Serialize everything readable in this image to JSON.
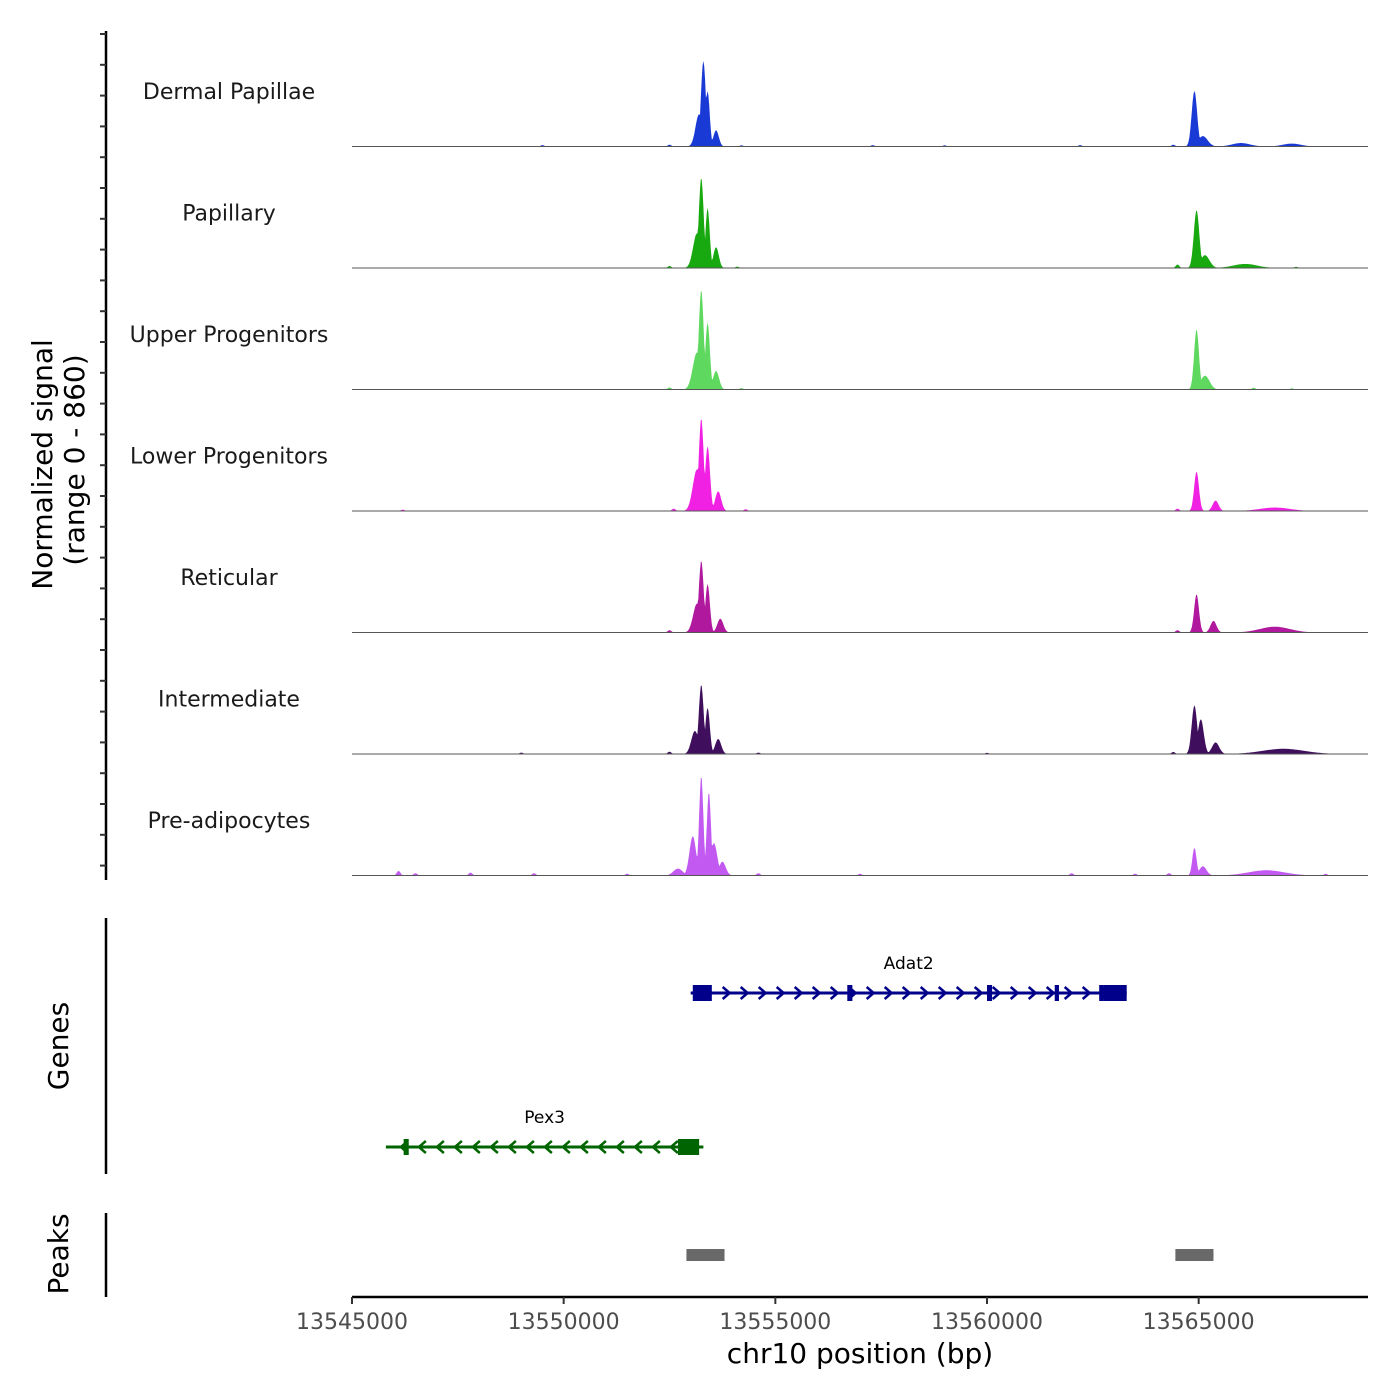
{
  "chart_data": {
    "type": "genome-coverage-track",
    "y_title_line1": "Normalized signal",
    "y_title_line2": "(range 0 - 860)",
    "y_range": [
      0,
      860
    ],
    "x_title": "chr10 position (bp)",
    "x_range": [
      13545000,
      13569000
    ],
    "x_ticks": [
      13545000,
      13550000,
      13555000,
      13560000,
      13565000
    ],
    "x_tick_labels": [
      "13545000",
      "13550000",
      "13555000",
      "13560000",
      "13565000"
    ],
    "tracks": [
      {
        "name": "Dermal Papillae",
        "color": "#1a3ad6",
        "peaks": [
          {
            "pos": 13553300,
            "height": 740,
            "width": 80
          },
          {
            "pos": 13553400,
            "height": 480,
            "width": 70
          },
          {
            "pos": 13553200,
            "height": 280,
            "width": 120
          },
          {
            "pos": 13553600,
            "height": 140,
            "width": 90
          },
          {
            "pos": 13564900,
            "height": 480,
            "width": 90
          },
          {
            "pos": 13565100,
            "height": 90,
            "width": 160
          },
          {
            "pos": 13566000,
            "height": 30,
            "width": 300
          },
          {
            "pos": 13567200,
            "height": 25,
            "width": 300
          }
        ],
        "noise": [
          {
            "pos": 13549500,
            "height": 12
          },
          {
            "pos": 13552500,
            "height": 15
          },
          {
            "pos": 13554200,
            "height": 10
          },
          {
            "pos": 13557300,
            "height": 12
          },
          {
            "pos": 13559000,
            "height": 10
          },
          {
            "pos": 13562200,
            "height": 12
          },
          {
            "pos": 13564400,
            "height": 15
          }
        ]
      },
      {
        "name": "Papillary",
        "color": "#18a80f",
        "peaks": [
          {
            "pos": 13553250,
            "height": 780,
            "width": 80
          },
          {
            "pos": 13553400,
            "height": 520,
            "width": 70
          },
          {
            "pos": 13553150,
            "height": 300,
            "width": 130
          },
          {
            "pos": 13553600,
            "height": 180,
            "width": 90
          },
          {
            "pos": 13564950,
            "height": 500,
            "width": 90
          },
          {
            "pos": 13565150,
            "height": 110,
            "width": 150
          },
          {
            "pos": 13566100,
            "height": 35,
            "width": 400
          }
        ],
        "noise": [
          {
            "pos": 13552500,
            "height": 18
          },
          {
            "pos": 13554100,
            "height": 12
          },
          {
            "pos": 13564500,
            "height": 30
          },
          {
            "pos": 13567300,
            "height": 10
          }
        ]
      },
      {
        "name": "Upper Progenitors",
        "color": "#5ed85e",
        "peaks": [
          {
            "pos": 13553250,
            "height": 860,
            "width": 80
          },
          {
            "pos": 13553400,
            "height": 580,
            "width": 75
          },
          {
            "pos": 13553150,
            "height": 320,
            "width": 140
          },
          {
            "pos": 13553600,
            "height": 160,
            "width": 100
          },
          {
            "pos": 13564950,
            "height": 520,
            "width": 80
          },
          {
            "pos": 13565150,
            "height": 120,
            "width": 150
          }
        ],
        "noise": [
          {
            "pos": 13552500,
            "height": 18
          },
          {
            "pos": 13554200,
            "height": 12
          },
          {
            "pos": 13566300,
            "height": 15
          },
          {
            "pos": 13567200,
            "height": 10
          }
        ]
      },
      {
        "name": "Lower Progenitors",
        "color": "#f021e3",
        "peaks": [
          {
            "pos": 13553250,
            "height": 800,
            "width": 80
          },
          {
            "pos": 13553400,
            "height": 560,
            "width": 80
          },
          {
            "pos": 13553150,
            "height": 360,
            "width": 140
          },
          {
            "pos": 13553650,
            "height": 170,
            "width": 100
          },
          {
            "pos": 13564950,
            "height": 340,
            "width": 80
          },
          {
            "pos": 13565400,
            "height": 90,
            "width": 100
          },
          {
            "pos": 13566800,
            "height": 30,
            "width": 500
          }
        ],
        "noise": [
          {
            "pos": 13546200,
            "height": 12
          },
          {
            "pos": 13552600,
            "height": 20
          },
          {
            "pos": 13554300,
            "height": 15
          },
          {
            "pos": 13564500,
            "height": 20
          }
        ]
      },
      {
        "name": "Reticular",
        "color": "#b0189e",
        "peaks": [
          {
            "pos": 13553250,
            "height": 620,
            "width": 80
          },
          {
            "pos": 13553400,
            "height": 420,
            "width": 75
          },
          {
            "pos": 13553150,
            "height": 250,
            "width": 130
          },
          {
            "pos": 13553700,
            "height": 120,
            "width": 100
          },
          {
            "pos": 13564950,
            "height": 330,
            "width": 80
          },
          {
            "pos": 13565350,
            "height": 100,
            "width": 100
          },
          {
            "pos": 13566800,
            "height": 50,
            "width": 500
          }
        ],
        "noise": [
          {
            "pos": 13552500,
            "height": 20
          },
          {
            "pos": 13564500,
            "height": 20
          }
        ]
      },
      {
        "name": "Intermediate",
        "color": "#3f0f5e",
        "peaks": [
          {
            "pos": 13553250,
            "height": 600,
            "width": 80
          },
          {
            "pos": 13553400,
            "height": 400,
            "width": 75
          },
          {
            "pos": 13553100,
            "height": 200,
            "width": 120
          },
          {
            "pos": 13553650,
            "height": 130,
            "width": 100
          },
          {
            "pos": 13564900,
            "height": 420,
            "width": 90
          },
          {
            "pos": 13565050,
            "height": 300,
            "width": 100
          },
          {
            "pos": 13565400,
            "height": 100,
            "width": 120
          },
          {
            "pos": 13567000,
            "height": 45,
            "width": 700
          }
        ],
        "noise": [
          {
            "pos": 13549000,
            "height": 12
          },
          {
            "pos": 13552500,
            "height": 20
          },
          {
            "pos": 13554600,
            "height": 12
          },
          {
            "pos": 13560000,
            "height": 10
          },
          {
            "pos": 13564400,
            "height": 18
          }
        ]
      },
      {
        "name": "Pre-adipocytes",
        "color": "#c25af2",
        "peaks": [
          {
            "pos": 13553250,
            "height": 860,
            "width": 70
          },
          {
            "pos": 13553430,
            "height": 720,
            "width": 70
          },
          {
            "pos": 13553050,
            "height": 340,
            "width": 110
          },
          {
            "pos": 13553550,
            "height": 280,
            "width": 110
          },
          {
            "pos": 13553750,
            "height": 120,
            "width": 110
          },
          {
            "pos": 13552700,
            "height": 60,
            "width": 150
          },
          {
            "pos": 13564900,
            "height": 240,
            "width": 70
          },
          {
            "pos": 13565100,
            "height": 80,
            "width": 120
          },
          {
            "pos": 13566600,
            "height": 45,
            "width": 600
          }
        ],
        "noise": [
          {
            "pos": 13546100,
            "height": 40
          },
          {
            "pos": 13546500,
            "height": 20
          },
          {
            "pos": 13547800,
            "height": 25
          },
          {
            "pos": 13549300,
            "height": 20
          },
          {
            "pos": 13551500,
            "height": 15
          },
          {
            "pos": 13554600,
            "height": 20
          },
          {
            "pos": 13557000,
            "height": 15
          },
          {
            "pos": 13562000,
            "height": 20
          },
          {
            "pos": 13563500,
            "height": 15
          },
          {
            "pos": 13564300,
            "height": 20
          },
          {
            "pos": 13568000,
            "height": 15
          }
        ]
      }
    ],
    "genes_title": "Genes",
    "genes": [
      {
        "name": "Adat2",
        "strand": "+",
        "start": 13553000,
        "end": 13563300,
        "color": "#00008b",
        "exons": [
          [
            13553050,
            13553500
          ],
          [
            13556700,
            13556820
          ],
          [
            13560000,
            13560120
          ],
          [
            13561600,
            13561700
          ],
          [
            13562650,
            13562750
          ],
          [
            13562750,
            13563300
          ]
        ]
      },
      {
        "name": "Pex3",
        "strand": "-",
        "start": 13545800,
        "end": 13553300,
        "color": "#006400",
        "exons": [
          [
            13546220,
            13546340
          ],
          [
            13552700,
            13553200
          ]
        ]
      }
    ],
    "peaks_title": "Peaks",
    "peak_color": "#696969",
    "peak_regions": [
      [
        13552900,
        13553800
      ],
      [
        13564450,
        13565350
      ]
    ]
  }
}
